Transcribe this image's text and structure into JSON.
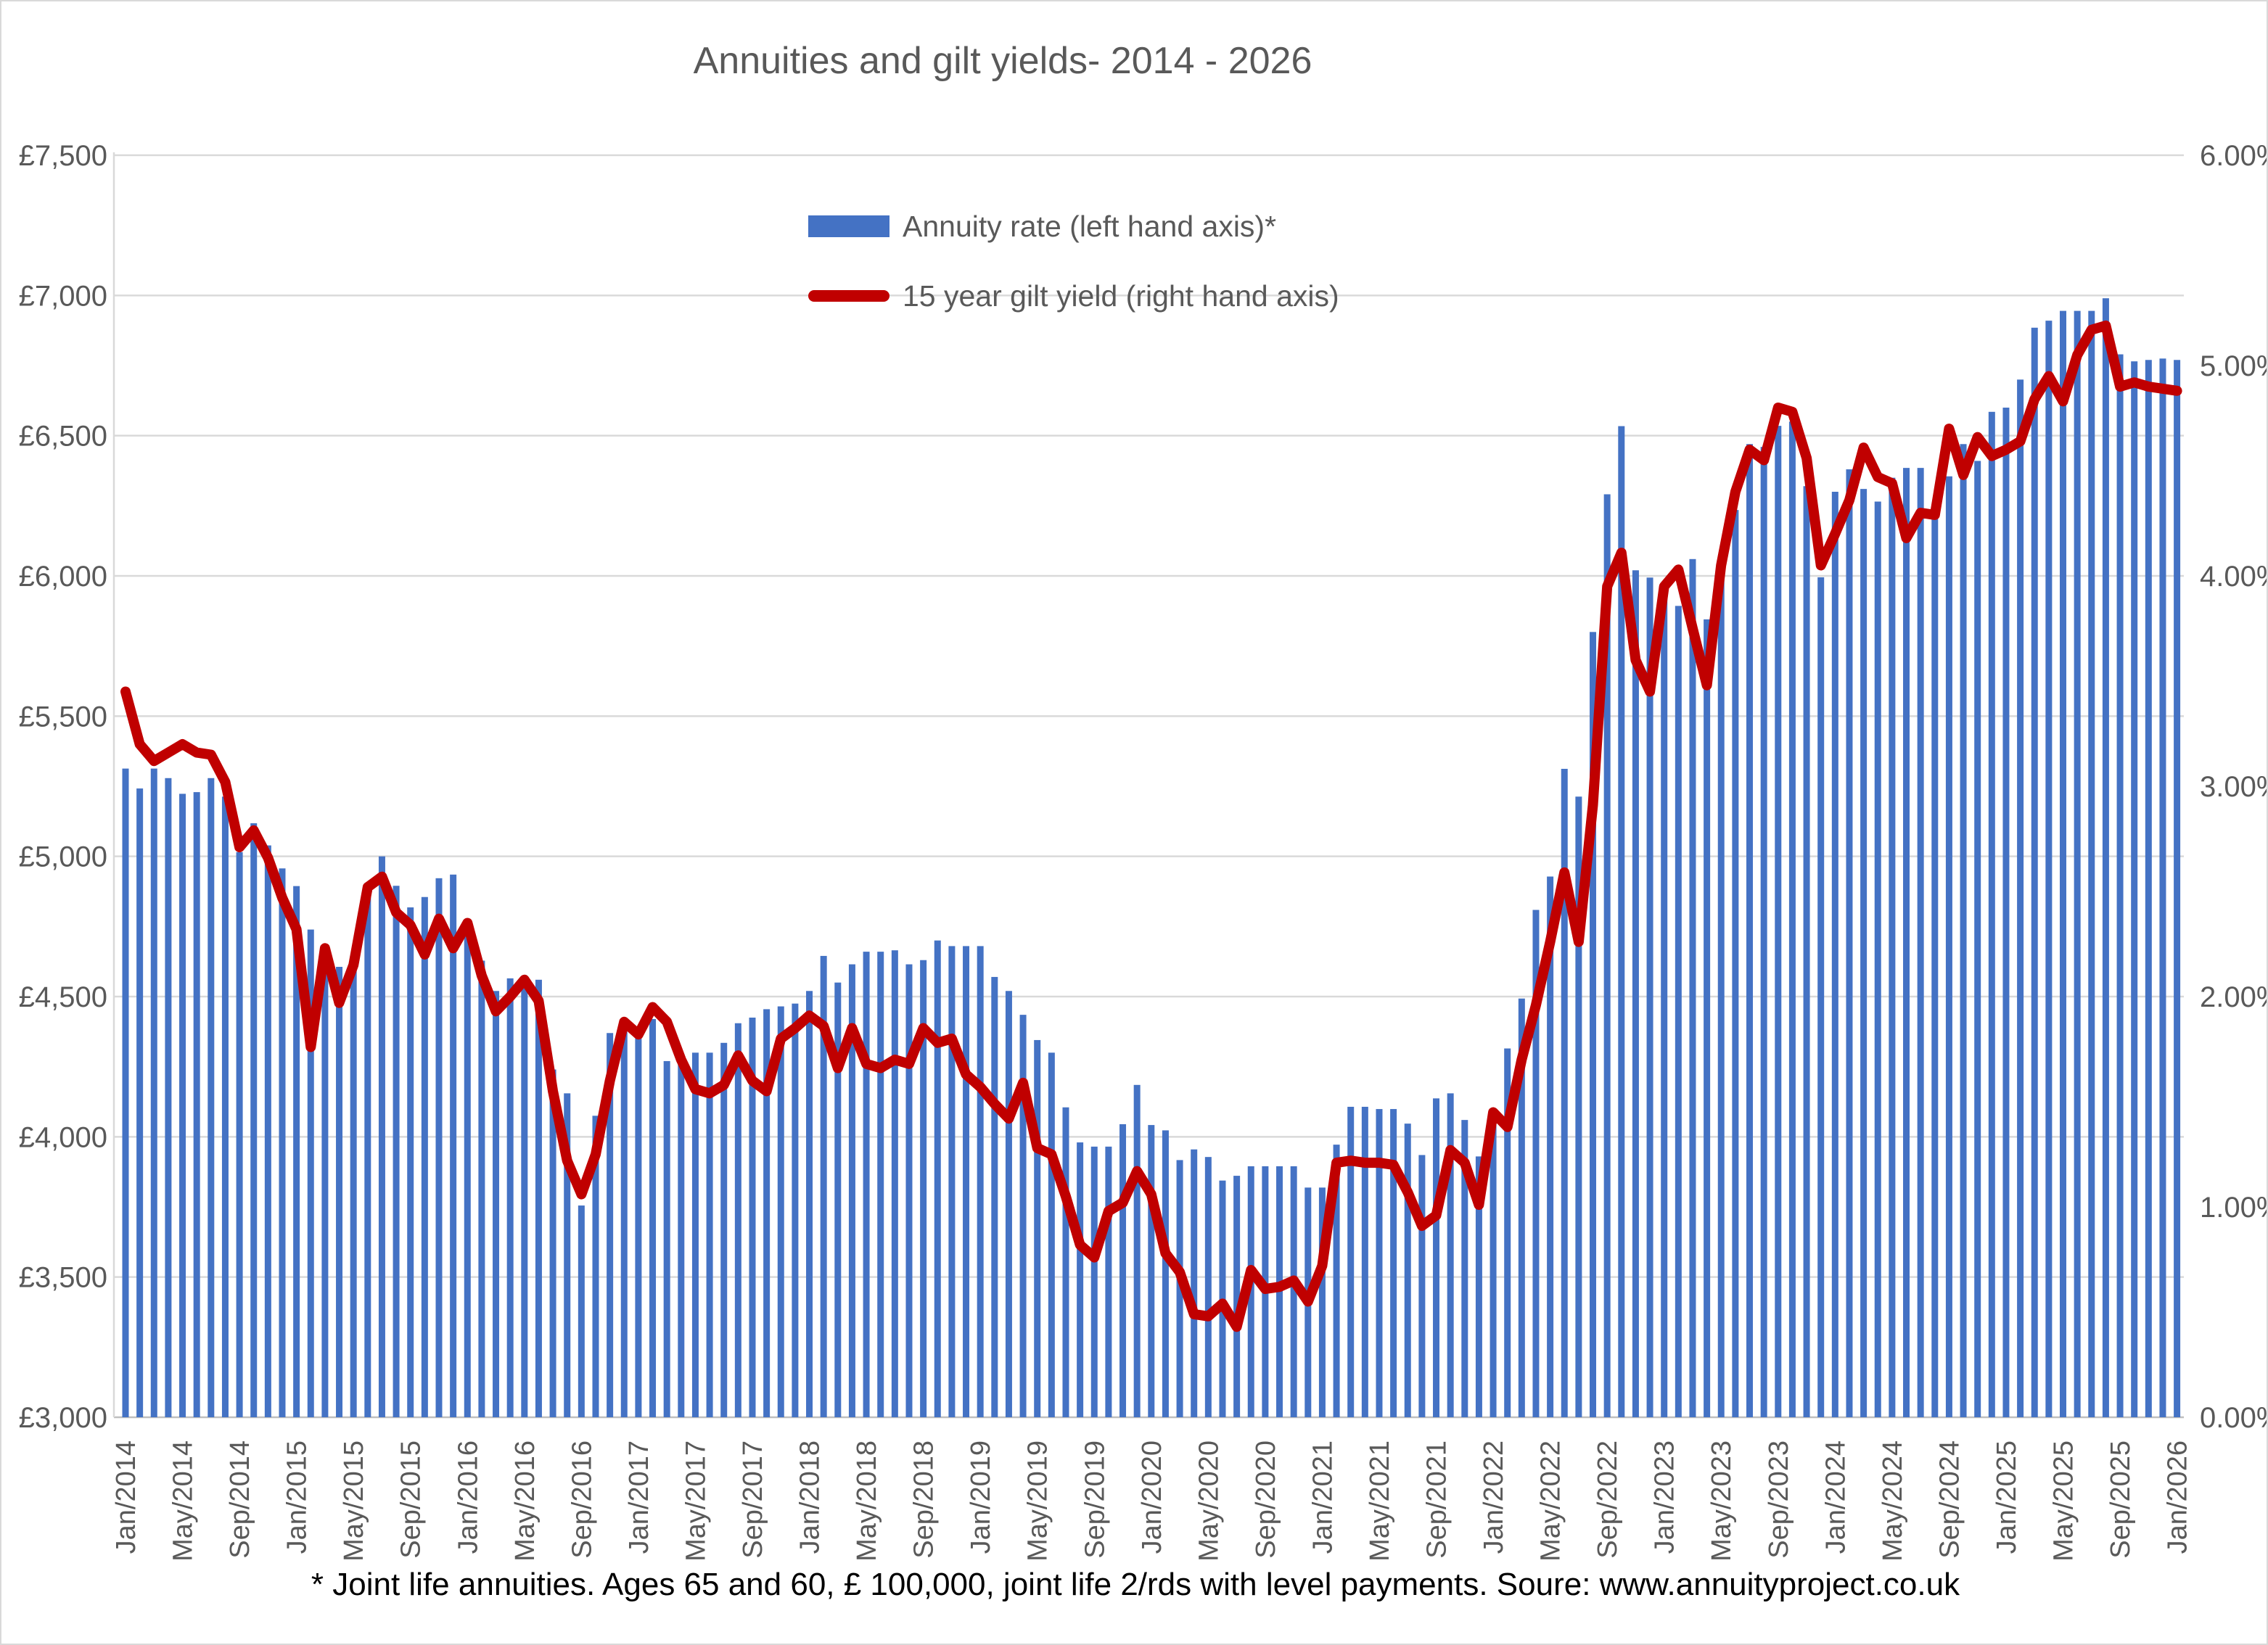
{
  "title": "Annuities and gilt yields- 2014 - 2026",
  "legend": [
    {
      "label": "Annuity rate (left hand axis)*",
      "color": "#4472C4",
      "marker": "bar-swatch"
    },
    {
      "label": "15 year gilt yield (right hand axis)",
      "color": "#C00000",
      "marker": "line-swatch"
    }
  ],
  "footnote": "* Joint life annuities. Ages 65 and 60, £ 100,000, joint life 2/rds with level payments. Soure: www.annuityproject.co.uk",
  "colors": {
    "bar": "#4472C4",
    "line": "#C00000",
    "axis_text": "#595959",
    "title_text": "#595959",
    "gridline": "#d9d9d9",
    "axis_line": "#bfbfbf",
    "background": "#ffffff"
  },
  "left_axis": {
    "min": 3000,
    "max": 7500,
    "step": 500,
    "tick_labels": [
      "£3,000",
      "£3,500",
      "£4,000",
      "£4,500",
      "£5,000",
      "£5,500",
      "£6,000",
      "£6,500",
      "£7,000",
      "£7,500"
    ]
  },
  "right_axis": {
    "min": 0,
    "max": 6,
    "step": 1,
    "tick_labels": [
      "0.00%",
      "1.00%",
      "2.00%",
      "3.00%",
      "4.00%",
      "5.00%",
      "6.00%"
    ]
  },
  "x_axis": {
    "start": "Jan/2014",
    "end": "Jan/2026",
    "label_every_n_months": 4,
    "tick_labels": [
      "Jan/2014",
      "May/2014",
      "Sep/2014",
      "Jan/2015",
      "May/2015",
      "Sep/2015",
      "Jan/2016",
      "May/2016",
      "Sep/2016",
      "Jan/2017",
      "May/2017",
      "Sep/2017",
      "Jan/2018",
      "May/2018",
      "Sep/2018",
      "Jan/2019",
      "May/2019",
      "Sep/2019",
      "Jan/2020",
      "May/2020",
      "Sep/2020",
      "Jan/2021",
      "May/2021",
      "Sep/2021",
      "Jan/2022",
      "May/2022",
      "Sep/2022",
      "Jan/2023",
      "May/2023",
      "Sep/2023",
      "Jan/2024",
      "May/2024",
      "Sep/2024",
      "Jan/2025",
      "May/2025",
      "Sep/2025",
      "Jan/2026"
    ]
  },
  "chart_data": {
    "type": "combo",
    "x_start": "Jan/2014",
    "x_step_months": 1,
    "n_points": 145,
    "grid": "horizontal-only",
    "legend_position": "inside-top-left-of-plot",
    "series": [
      {
        "name": "Annuity rate (left hand axis)*",
        "type": "bar",
        "axis": "left",
        "unit": "£ per year",
        "values": [
          5313,
          5242,
          5313,
          5279,
          5223,
          5229,
          5279,
          5213,
          5015,
          5118,
          5039,
          4957,
          4894,
          4739,
          4588,
          4606,
          4606,
          4905,
          5000,
          4895,
          4818,
          4855,
          4922,
          4935,
          4723,
          4628,
          4520,
          4565,
          4530,
          4560,
          4240,
          4155,
          3755,
          4075,
          4370,
          4375,
          4380,
          4420,
          4270,
          4270,
          4300,
          4300,
          4335,
          4405,
          4425,
          4455,
          4465,
          4475,
          4520,
          4645,
          4550,
          4615,
          4660,
          4660,
          4665,
          4615,
          4630,
          4700,
          4680,
          4680,
          4680,
          4570,
          4520,
          4435,
          4345,
          4300,
          4105,
          3980,
          3965,
          3965,
          4045,
          4185,
          4042,
          4023,
          3917,
          3955,
          3928,
          3844,
          3861,
          3895,
          3895,
          3895,
          3895,
          3819,
          3819,
          3972,
          4107,
          4107,
          4099,
          4099,
          4047,
          3935,
          4137,
          4155,
          4060,
          3930,
          4073,
          4315,
          4493,
          4809,
          4928,
          5312,
          5213,
          5800,
          6291,
          6534,
          6020,
          5994,
          5951,
          5893,
          6060,
          5845,
          5995,
          6235,
          6470,
          6460,
          6535,
          6550,
          6320,
          5995,
          6300,
          6380,
          6310,
          6265,
          6350,
          6385,
          6385,
          6220,
          6355,
          6470,
          6410,
          6585,
          6600,
          6700,
          6885,
          6910,
          6945,
          6945,
          6945,
          6990,
          6790,
          6765,
          6770,
          6775,
          6770
        ]
      },
      {
        "name": "15 year gilt yield (right hand axis)",
        "type": "line",
        "axis": "right",
        "unit": "%",
        "values": [
          3.45,
          3.2,
          3.12,
          3.16,
          3.2,
          3.16,
          3.15,
          3.02,
          2.71,
          2.79,
          2.66,
          2.47,
          2.32,
          1.76,
          2.23,
          1.97,
          2.15,
          2.52,
          2.57,
          2.4,
          2.34,
          2.2,
          2.37,
          2.23,
          2.35,
          2.1,
          1.93,
          2.0,
          2.08,
          1.98,
          1.55,
          1.22,
          1.06,
          1.25,
          1.6,
          1.88,
          1.82,
          1.95,
          1.88,
          1.7,
          1.56,
          1.54,
          1.58,
          1.72,
          1.6,
          1.55,
          1.8,
          1.85,
          1.91,
          1.86,
          1.66,
          1.85,
          1.68,
          1.66,
          1.7,
          1.68,
          1.85,
          1.78,
          1.8,
          1.63,
          1.57,
          1.49,
          1.42,
          1.59,
          1.28,
          1.25,
          1.05,
          0.82,
          0.76,
          0.98,
          1.02,
          1.17,
          1.06,
          0.78,
          0.69,
          0.49,
          0.48,
          0.54,
          0.43,
          0.7,
          0.61,
          0.62,
          0.65,
          0.55,
          0.72,
          1.21,
          1.22,
          1.21,
          1.21,
          1.2,
          1.07,
          0.91,
          0.96,
          1.27,
          1.21,
          1.01,
          1.45,
          1.38,
          1.7,
          1.96,
          2.26,
          2.59,
          2.26,
          2.91,
          3.95,
          4.11,
          3.6,
          3.45,
          3.95,
          4.03,
          3.75,
          3.48,
          4.05,
          4.4,
          4.6,
          4.55,
          4.8,
          4.78,
          4.56,
          4.05,
          4.2,
          4.36,
          4.61,
          4.47,
          4.44,
          4.18,
          4.3,
          4.29,
          4.7,
          4.48,
          4.66,
          4.57,
          4.6,
          4.64,
          4.84,
          4.95,
          4.83,
          5.05,
          5.17,
          5.19,
          4.9,
          4.92,
          4.9,
          4.89,
          4.88
        ]
      }
    ]
  }
}
